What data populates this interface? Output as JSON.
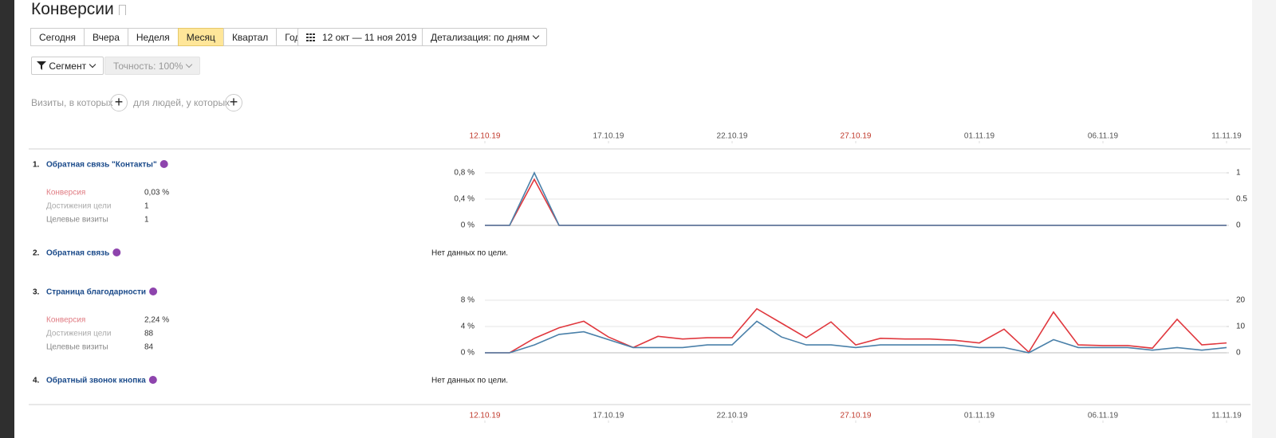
{
  "header": {
    "title": "Конверсии"
  },
  "toolbar": {
    "periods": [
      "Сегодня",
      "Вчера",
      "Неделя",
      "Месяц",
      "Квартал",
      "Год"
    ],
    "active_period": 3,
    "date_range": "12 окт — 11 ноя 2019",
    "detail": "Детализация: по дням",
    "segment": "Сегмент",
    "accuracy": "Точность: 100%"
  },
  "filters": {
    "visits": "Визиты, в которых",
    "people": "для людей, у которых"
  },
  "timeline": {
    "xlim": [
      0,
      30
    ],
    "ticks": [
      {
        "value": 0,
        "label": "12.10.19",
        "color": "#c0392b"
      },
      {
        "value": 5,
        "label": "17.10.19",
        "color": "#555555"
      },
      {
        "value": 10,
        "label": "22.10.19",
        "color": "#555555"
      },
      {
        "value": 15,
        "label": "27.10.19",
        "color": "#c0392b"
      },
      {
        "value": 20,
        "label": "01.11.19",
        "color": "#555555"
      },
      {
        "value": 25,
        "label": "06.11.19",
        "color": "#555555"
      },
      {
        "value": 30,
        "label": "11.11.19",
        "color": "#555555"
      }
    ]
  },
  "goals": [
    {
      "number": "1.",
      "name": "Обратная связь \"Контакты\"",
      "metrics": [
        {
          "label": "Конверсия",
          "value": "0,03 %",
          "color": "#e07b82"
        },
        {
          "label": "Достижения цели",
          "value": "1",
          "color": "#aaaaaa"
        },
        {
          "label": "Целевые визиты",
          "value": "1",
          "color": "#888888"
        }
      ],
      "chart_data": {
        "type": "line",
        "ylim": [
          0,
          0.8
        ],
        "yticks": [
          {
            "value": 0,
            "label": "0 %"
          },
          {
            "value": 0.4,
            "label": "0,4 %"
          },
          {
            "value": 0.8,
            "label": "0,8 %"
          }
        ],
        "y2lim": [
          0,
          1
        ],
        "y2ticks": [
          0,
          0.5,
          1
        ],
        "series": [
          {
            "color": "#e0383e",
            "values": [
              0,
              0,
              0.7,
              0,
              0,
              0,
              0,
              0,
              0,
              0,
              0,
              0,
              0,
              0,
              0,
              0,
              0,
              0,
              0,
              0,
              0,
              0,
              0,
              0,
              0,
              0,
              0,
              0,
              0,
              0,
              0
            ]
          },
          {
            "color": "#4a80a9",
            "axis": "y2",
            "values": [
              0,
              0,
              1,
              0,
              0,
              0,
              0,
              0,
              0,
              0,
              0,
              0,
              0,
              0,
              0,
              0,
              0,
              0,
              0,
              0,
              0,
              0,
              0,
              0,
              0,
              0,
              0,
              0,
              0,
              0,
              0
            ]
          }
        ]
      }
    },
    {
      "number": "2.",
      "name": "Обратная связь",
      "no_data": "Нет данных по цели."
    },
    {
      "number": "3.",
      "name": "Страница благодарности",
      "metrics": [
        {
          "label": "Конверсия",
          "value": "2,24 %",
          "color": "#e07b82"
        },
        {
          "label": "Достижения цели",
          "value": "88",
          "color": "#aaaaaa"
        },
        {
          "label": "Целевые визиты",
          "value": "84",
          "color": "#888888"
        }
      ],
      "chart_data": {
        "type": "line",
        "ylim": [
          0,
          8
        ],
        "yticks": [
          {
            "value": 0,
            "label": "0 %"
          },
          {
            "value": 4,
            "label": "4 %"
          },
          {
            "value": 8,
            "label": "8 %"
          }
        ],
        "y2lim": [
          0,
          20
        ],
        "y2ticks": [
          0,
          10,
          20
        ],
        "series": [
          {
            "color": "#e0383e",
            "values": [
              0,
              0,
              2.2,
              3.8,
              4.8,
              2.4,
              0.8,
              2.5,
              2.1,
              2.3,
              2.3,
              6.7,
              4.5,
              2.3,
              4.7,
              1.2,
              2.2,
              2.1,
              2.1,
              1.9,
              1.5,
              3.6,
              0.1,
              6.2,
              1.2,
              1.1,
              1.1,
              0.7,
              5.1,
              1.2,
              1.5
            ]
          },
          {
            "color": "#4a80a9",
            "axis": "y2",
            "values": [
              0,
              0,
              3,
              7,
              8,
              5,
              2,
              2,
              2,
              3,
              3,
              12,
              6,
              3,
              3,
              2,
              3,
              3,
              3,
              3,
              2,
              2,
              0,
              5,
              2,
              2,
              2,
              1,
              2,
              1,
              2
            ]
          }
        ]
      }
    },
    {
      "number": "4.",
      "name": "Обратный звонок кнопка",
      "no_data": "Нет данных по цели."
    }
  ]
}
